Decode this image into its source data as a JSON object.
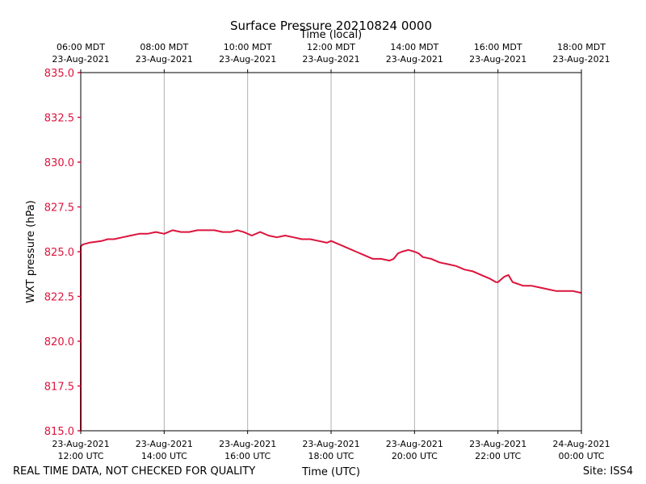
{
  "chart_data": {
    "type": "line",
    "title": "Surface Pressure 20210824 0000",
    "xlabel": "Time (UTC)",
    "x2label": "Time (local)",
    "ylabel": "WXT pressure (hPa)",
    "ylim": [
      815.0,
      835.0
    ],
    "xlim_hours_utc": [
      12,
      24
    ],
    "grid": "vertical",
    "series_color": "#dc143c",
    "axis_label_color": "#dc143c",
    "yticks": [
      {
        "value": 815.0,
        "label": "815.0"
      },
      {
        "value": 817.5,
        "label": "817.5"
      },
      {
        "value": 820.0,
        "label": "820.0"
      },
      {
        "value": 822.5,
        "label": "822.5"
      },
      {
        "value": 825.0,
        "label": "825.0"
      },
      {
        "value": 827.5,
        "label": "827.5"
      },
      {
        "value": 830.0,
        "label": "830.0"
      },
      {
        "value": 832.5,
        "label": "832.5"
      },
      {
        "value": 835.0,
        "label": "835.0"
      }
    ],
    "xticks_bottom": [
      {
        "hour": 12,
        "date": "23-Aug-2021",
        "time": "12:00 UTC"
      },
      {
        "hour": 14,
        "date": "23-Aug-2021",
        "time": "14:00 UTC"
      },
      {
        "hour": 16,
        "date": "23-Aug-2021",
        "time": "16:00 UTC"
      },
      {
        "hour": 18,
        "date": "23-Aug-2021",
        "time": "18:00 UTC"
      },
      {
        "hour": 20,
        "date": "23-Aug-2021",
        "time": "20:00 UTC"
      },
      {
        "hour": 22,
        "date": "23-Aug-2021",
        "time": "22:00 UTC"
      },
      {
        "hour": 24,
        "date": "24-Aug-2021",
        "time": "00:00 UTC"
      }
    ],
    "xticks_top": [
      {
        "hour": 12,
        "time": "06:00 MDT",
        "date": "23-Aug-2021"
      },
      {
        "hour": 14,
        "time": "08:00 MDT",
        "date": "23-Aug-2021"
      },
      {
        "hour": 16,
        "time": "10:00 MDT",
        "date": "23-Aug-2021"
      },
      {
        "hour": 18,
        "time": "12:00 MDT",
        "date": "23-Aug-2021"
      },
      {
        "hour": 20,
        "time": "14:00 MDT",
        "date": "23-Aug-2021"
      },
      {
        "hour": 22,
        "time": "16:00 MDT",
        "date": "23-Aug-2021"
      },
      {
        "hour": 24,
        "time": "18:00 MDT",
        "date": "23-Aug-2021"
      }
    ],
    "series": [
      {
        "name": "WXT pressure",
        "x_hours_utc": [
          12.0,
          12.0,
          12.05,
          12.2,
          12.5,
          12.65,
          12.8,
          13.0,
          13.2,
          13.4,
          13.6,
          13.8,
          14.0,
          14.2,
          14.4,
          14.6,
          14.8,
          15.0,
          15.2,
          15.4,
          15.6,
          15.75,
          15.9,
          16.1,
          16.3,
          16.5,
          16.7,
          16.9,
          17.1,
          17.3,
          17.5,
          17.7,
          17.9,
          18.0,
          18.2,
          18.4,
          18.6,
          18.8,
          19.0,
          19.2,
          19.4,
          19.5,
          19.6,
          19.7,
          19.85,
          20.0,
          20.1,
          20.2,
          20.4,
          20.6,
          20.8,
          21.0,
          21.2,
          21.4,
          21.6,
          21.8,
          21.95,
          22.0,
          22.15,
          22.25,
          22.35,
          22.6,
          22.8,
          23.0,
          23.2,
          23.4,
          23.6,
          23.8,
          24.0
        ],
        "values": [
          815.0,
          825.3,
          825.4,
          825.5,
          825.6,
          825.7,
          825.7,
          825.8,
          825.9,
          826.0,
          826.0,
          826.1,
          826.0,
          826.2,
          826.1,
          826.1,
          826.2,
          826.2,
          826.2,
          826.1,
          826.1,
          826.2,
          826.1,
          825.9,
          826.1,
          825.9,
          825.8,
          825.9,
          825.8,
          825.7,
          825.7,
          825.6,
          825.5,
          825.6,
          825.4,
          825.2,
          825.0,
          824.8,
          824.6,
          824.6,
          824.5,
          824.6,
          824.9,
          825.0,
          825.1,
          825.0,
          824.9,
          824.7,
          824.6,
          824.4,
          824.3,
          824.2,
          824.0,
          823.9,
          823.7,
          823.5,
          823.3,
          823.3,
          823.6,
          823.7,
          823.3,
          823.1,
          823.1,
          823.0,
          822.9,
          822.8,
          822.8,
          822.8,
          822.7
        ]
      }
    ]
  },
  "footer": {
    "left_note": "REAL TIME DATA, NOT CHECKED FOR QUALITY",
    "site": "Site: ISS4"
  }
}
